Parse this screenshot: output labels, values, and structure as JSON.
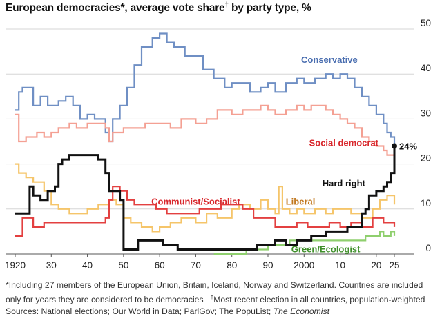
{
  "title": "European democracies*, average vote share† by party type, %",
  "title_main": "European democracies*, average vote share",
  "title_dagger": "†",
  "title_rest": " by party type, %",
  "footnotes": {
    "line1": "*Including 27 members of the European Union, Britain, Iceland, Norway and Switzerland. Countries are included",
    "line2a": "only for years they are considered to be democracies",
    "line2_dagger": "†",
    "line2b": "Most recent election in all countries, population-weighted",
    "line3a": "Sources: National elections; Our World in Data; ParlGov; The PopuList; ",
    "line3b": "The Economist"
  },
  "chart_data": {
    "type": "line",
    "title": "European democracies*, average vote share† by party type, %",
    "xlabel": "",
    "ylabel": "",
    "xlim": [
      1920,
      2025
    ],
    "ylim": [
      0,
      50
    ],
    "x_ticks": [
      1920,
      1930,
      1940,
      1950,
      1960,
      1970,
      1980,
      1990,
      2000,
      2010,
      2020,
      2025
    ],
    "x_tick_labels": [
      "1920",
      "30",
      "40",
      "50",
      "60",
      "70",
      "80",
      "90",
      "2000",
      "10",
      "20",
      "25"
    ],
    "y_ticks": [
      0,
      10,
      20,
      30,
      40,
      50
    ],
    "y_tick_labels": [
      "0",
      "10",
      "20",
      "30",
      "40",
      "50"
    ],
    "grid": true,
    "end_annotation": "24%",
    "series": [
      {
        "name": "Conservative",
        "color": "#6f8fc4",
        "x": [
          1920,
          1921,
          1922,
          1925,
          1927,
          1929,
          1932,
          1934,
          1936,
          1938,
          1940,
          1942,
          1945,
          1946,
          1947,
          1949,
          1951,
          1953,
          1955,
          1958,
          1960,
          1962,
          1964,
          1967,
          1970,
          1972,
          1975,
          1978,
          1980,
          1983,
          1985,
          1988,
          1990,
          1992,
          1995,
          1998,
          2000,
          2003,
          2006,
          2008,
          2010,
          2012,
          2014,
          2016,
          2018,
          2020,
          2022,
          2023,
          2024,
          2025
        ],
        "y": [
          32,
          36,
          37,
          33,
          35,
          33,
          34,
          35,
          33,
          30,
          31,
          30,
          27,
          25,
          30,
          33,
          37,
          42,
          46,
          48,
          49,
          47,
          46,
          44,
          44,
          41,
          39,
          37,
          38,
          38,
          36,
          37,
          38,
          36,
          38,
          39,
          38,
          39,
          40,
          39,
          40,
          39,
          37,
          35,
          33,
          31,
          29,
          27,
          26,
          24
        ]
      },
      {
        "name": "Social democrat",
        "color": "#f4a093",
        "x": [
          1920,
          1921,
          1923,
          1926,
          1928,
          1930,
          1932,
          1935,
          1937,
          1940,
          1943,
          1945,
          1946,
          1947,
          1950,
          1953,
          1956,
          1960,
          1963,
          1966,
          1970,
          1973,
          1976,
          1980,
          1983,
          1986,
          1988,
          1990,
          1992,
          1995,
          1998,
          2000,
          2002,
          2004,
          2006,
          2008,
          2010,
          2012,
          2014,
          2016,
          2018,
          2020,
          2022,
          2023,
          2024,
          2025
        ],
        "y": [
          31,
          25,
          26,
          27,
          26,
          27,
          28,
          29,
          28,
          29,
          29,
          28,
          25,
          27,
          28,
          28,
          29,
          29,
          28,
          30,
          29,
          30,
          32,
          31,
          32,
          32,
          33,
          32,
          31,
          32,
          33,
          32,
          33,
          33,
          32,
          31,
          30,
          29,
          28,
          26,
          25,
          24,
          23,
          22,
          22,
          23
        ]
      },
      {
        "name": "Hard right",
        "color": "#111111",
        "x": [
          1920,
          1921,
          1923,
          1924,
          1925,
          1927,
          1929,
          1931,
          1932,
          1933,
          1935,
          1937,
          1940,
          1943,
          1945,
          1946,
          1947,
          1949,
          1950,
          1951,
          1954,
          1958,
          1961,
          1965,
          1970,
          1975,
          1980,
          1984,
          1987,
          1990,
          1992,
          1995,
          1998,
          2000,
          2002,
          2004,
          2006,
          2008,
          2010,
          2012,
          2014,
          2016,
          2017,
          2018,
          2020,
          2022,
          2023,
          2024,
          2025
        ],
        "y": [
          9,
          9,
          9,
          15,
          13,
          12,
          14,
          15,
          20,
          21,
          22,
          22,
          22,
          21,
          18,
          14,
          14,
          12,
          1,
          1,
          3,
          3,
          2,
          1,
          1,
          1,
          1,
          1,
          2,
          2,
          3,
          2,
          3,
          3,
          4,
          4,
          5,
          5,
          5,
          6,
          6,
          9,
          10,
          13,
          14,
          15,
          16,
          18,
          24
        ]
      },
      {
        "name": "Liberal",
        "color": "#f5c56a",
        "x": [
          1920,
          1921,
          1923,
          1925,
          1928,
          1930,
          1932,
          1935,
          1938,
          1940,
          1943,
          1946,
          1948,
          1950,
          1952,
          1955,
          1958,
          1960,
          1963,
          1966,
          1970,
          1973,
          1976,
          1980,
          1982,
          1985,
          1988,
          1990,
          1992,
          1993,
          1994,
          1996,
          1998,
          2000,
          2003,
          2006,
          2008,
          2010,
          2013,
          2016,
          2019,
          2021,
          2023,
          2025
        ],
        "y": [
          20,
          18,
          17,
          16,
          14,
          11,
          10,
          9,
          9,
          10,
          11,
          12,
          11,
          8,
          7,
          6,
          5,
          6,
          7,
          8,
          7,
          9,
          8,
          10,
          11,
          10,
          12,
          10,
          9,
          15,
          10,
          9,
          10,
          9,
          10,
          9,
          10,
          10,
          9,
          8,
          10,
          12,
          13,
          11
        ]
      },
      {
        "name": "Communist/Socialist",
        "color": "#e34040",
        "x": [
          1920,
          1921,
          1922,
          1925,
          1928,
          1930,
          1933,
          1936,
          1939,
          1942,
          1945,
          1946,
          1947,
          1949,
          1951,
          1953,
          1956,
          1959,
          1962,
          1965,
          1968,
          1971,
          1974,
          1977,
          1980,
          1983,
          1986,
          1989,
          1992,
          1995,
          1998,
          2001,
          2004,
          2007,
          2010,
          2013,
          2016,
          2019,
          2022,
          2024,
          2025
        ],
        "y": [
          4,
          4,
          8,
          6,
          7,
          7,
          7,
          7,
          7,
          7,
          8,
          12,
          15,
          14,
          12,
          11,
          11,
          10,
          9,
          9,
          9,
          10,
          10,
          11,
          11,
          10,
          8,
          8,
          6,
          6,
          7,
          6,
          6,
          7,
          6,
          7,
          6,
          8,
          7,
          7,
          6
        ]
      },
      {
        "name": "Green/Ecologist",
        "color": "#8fcf6e",
        "x": [
          1975,
          1978,
          1980,
          1982,
          1984,
          1986,
          1988,
          1990,
          1993,
          1996,
          1999,
          2002,
          2005,
          2008,
          2011,
          2014,
          2017,
          2019,
          2020,
          2021,
          2022,
          2023,
          2024,
          2025
        ],
        "y": [
          0,
          0,
          0,
          0,
          1,
          1,
          1,
          2,
          2,
          3,
          3,
          3,
          3,
          3,
          3,
          3,
          4,
          4,
          4,
          5,
          4,
          4,
          5,
          4
        ]
      }
    ]
  }
}
